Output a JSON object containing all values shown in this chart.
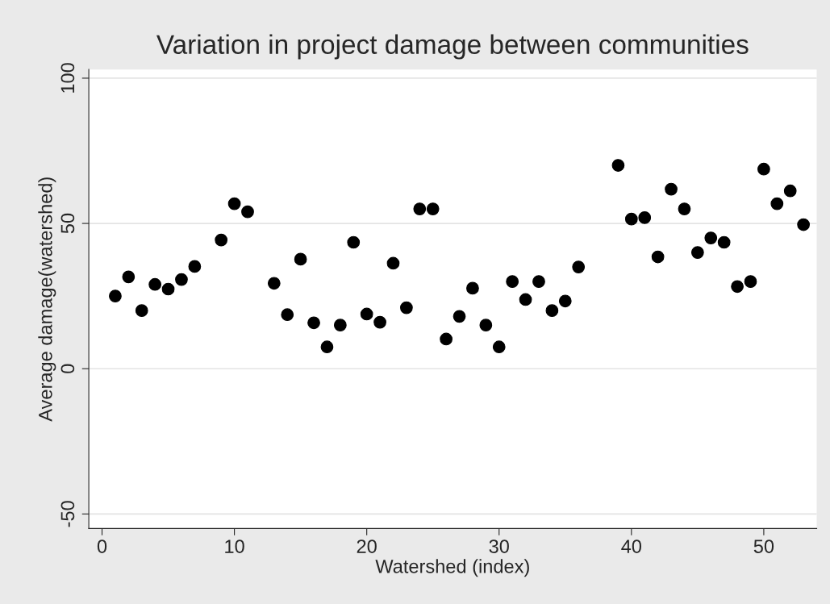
{
  "chart_data": {
    "type": "scatter",
    "title": "Variation in project damage between communities",
    "xlabel": "Watershed (index)",
    "ylabel": "Average damage(watershed)",
    "series": [
      {
        "color": "#000000",
        "x": [
          1,
          2,
          3,
          4,
          5,
          6,
          7,
          9,
          10,
          11,
          13,
          14,
          15,
          16,
          17,
          18,
          19,
          20,
          21,
          22,
          23,
          24,
          25,
          26,
          27,
          28,
          29,
          30,
          31,
          32,
          33,
          34,
          35,
          36,
          39,
          40,
          41,
          42,
          43,
          44,
          45,
          46,
          47,
          48,
          49,
          50,
          51,
          52,
          53
        ],
        "values": [
          25,
          31.6,
          20,
          29,
          27.4,
          30.7,
          35.2,
          44.3,
          56.8,
          54,
          29.4,
          18.6,
          37.7,
          15.8,
          7.5,
          15,
          43.5,
          18.8,
          16,
          36.3,
          21,
          55,
          55,
          10.2,
          18,
          27.7,
          15,
          7.5,
          30,
          23.8,
          30,
          20,
          23.3,
          35,
          70,
          51.5,
          52,
          38.5,
          61.8,
          55,
          40,
          45,
          43.5,
          28.3,
          30,
          68.7,
          56.8,
          61.2,
          49.6
        ]
      }
    ],
    "xlim": [
      -1,
      54
    ],
    "ylim": [
      -55,
      103
    ],
    "xticks": [
      0,
      10,
      20,
      30,
      40,
      50
    ],
    "yticks": [
      -50,
      0,
      50,
      100
    ],
    "grid": "y",
    "marker": "circle",
    "legend": false
  }
}
